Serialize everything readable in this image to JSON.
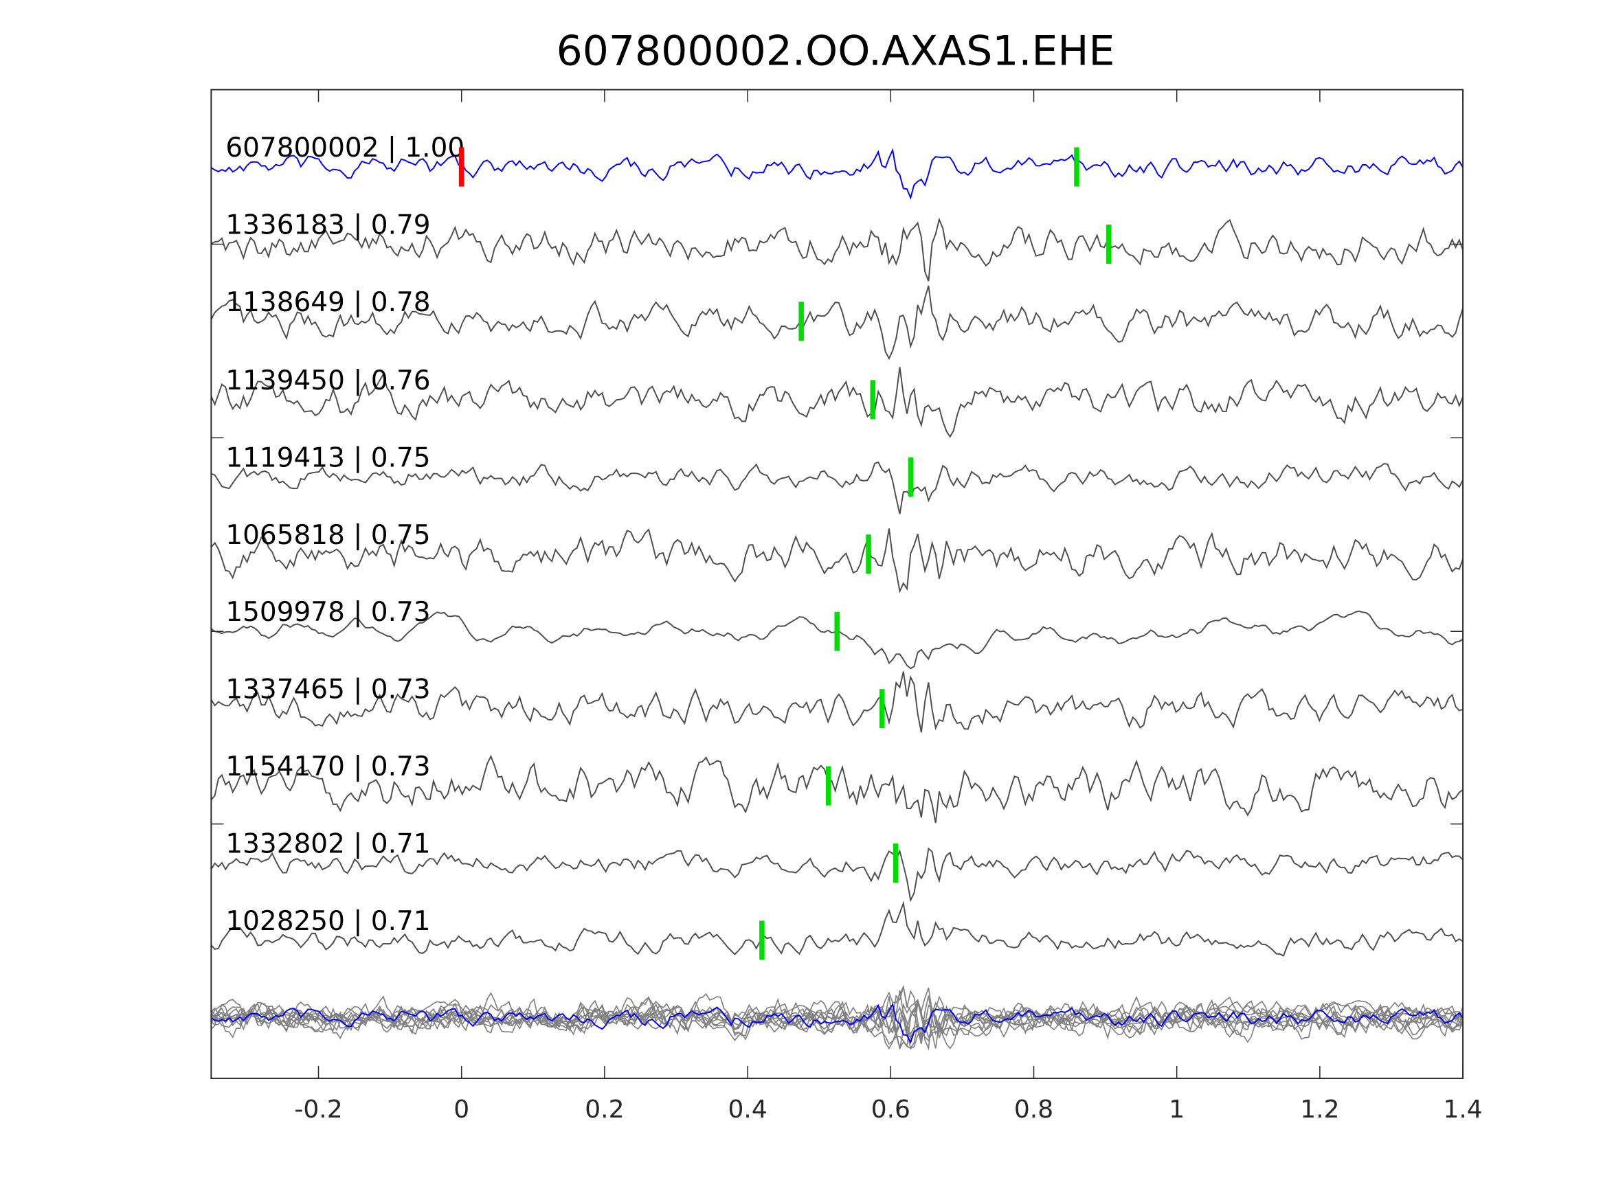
{
  "chart_data": {
    "type": "line",
    "title": "607800002.OO.AXAS1.EHE",
    "xlabel": "",
    "ylabel": "",
    "xlim": [
      -0.35,
      1.4
    ],
    "xticks": [
      "-0.2",
      "0",
      "0.2",
      "0.4",
      "0.6",
      "0.8",
      "1",
      "1.2",
      "1.4"
    ],
    "xtick_values": [
      -0.2,
      0,
      0.2,
      0.4,
      0.6,
      0.8,
      1,
      1.2,
      1.4
    ],
    "grid": false,
    "colors": {
      "template": "#0000ff",
      "trace": "#4d4d4d",
      "overlay": "#808080",
      "template_pick": "#ff0000",
      "pick": "#00dd00"
    },
    "series": [
      {
        "name": "607800002",
        "label": "607800002 | 1.00",
        "cc": 1.0,
        "pick": 0.0,
        "template": true
      },
      {
        "name": "1336183",
        "label": "1336183 | 0.79",
        "cc": 0.79,
        "pick": 0.905
      },
      {
        "name": "1138649",
        "label": "1138649 | 0.78",
        "cc": 0.78,
        "pick": 0.475
      },
      {
        "name": "1139450",
        "label": "1139450 | 0.76",
        "cc": 0.76,
        "pick": 0.575
      },
      {
        "name": "1119413",
        "label": "1119413 | 0.75",
        "cc": 0.75,
        "pick": 0.628
      },
      {
        "name": "1065818",
        "label": "1065818 | 0.75",
        "cc": 0.75,
        "pick": 0.569
      },
      {
        "name": "1509978",
        "label": "1509978 | 0.73",
        "cc": 0.73,
        "pick": 0.525
      },
      {
        "name": "1337465",
        "label": "1337465 | 0.73",
        "cc": 0.73,
        "pick": 0.588
      },
      {
        "name": "1154170",
        "label": "1154170 | 0.73",
        "cc": 0.73,
        "pick": 0.513
      },
      {
        "name": "1332802",
        "label": "1332802 | 0.71",
        "cc": 0.71,
        "pick": 0.607
      },
      {
        "name": "1028250",
        "label": "1028250 | 0.71",
        "cc": 0.71,
        "pick": 0.42
      }
    ],
    "template_second_pick": 0.86
  }
}
